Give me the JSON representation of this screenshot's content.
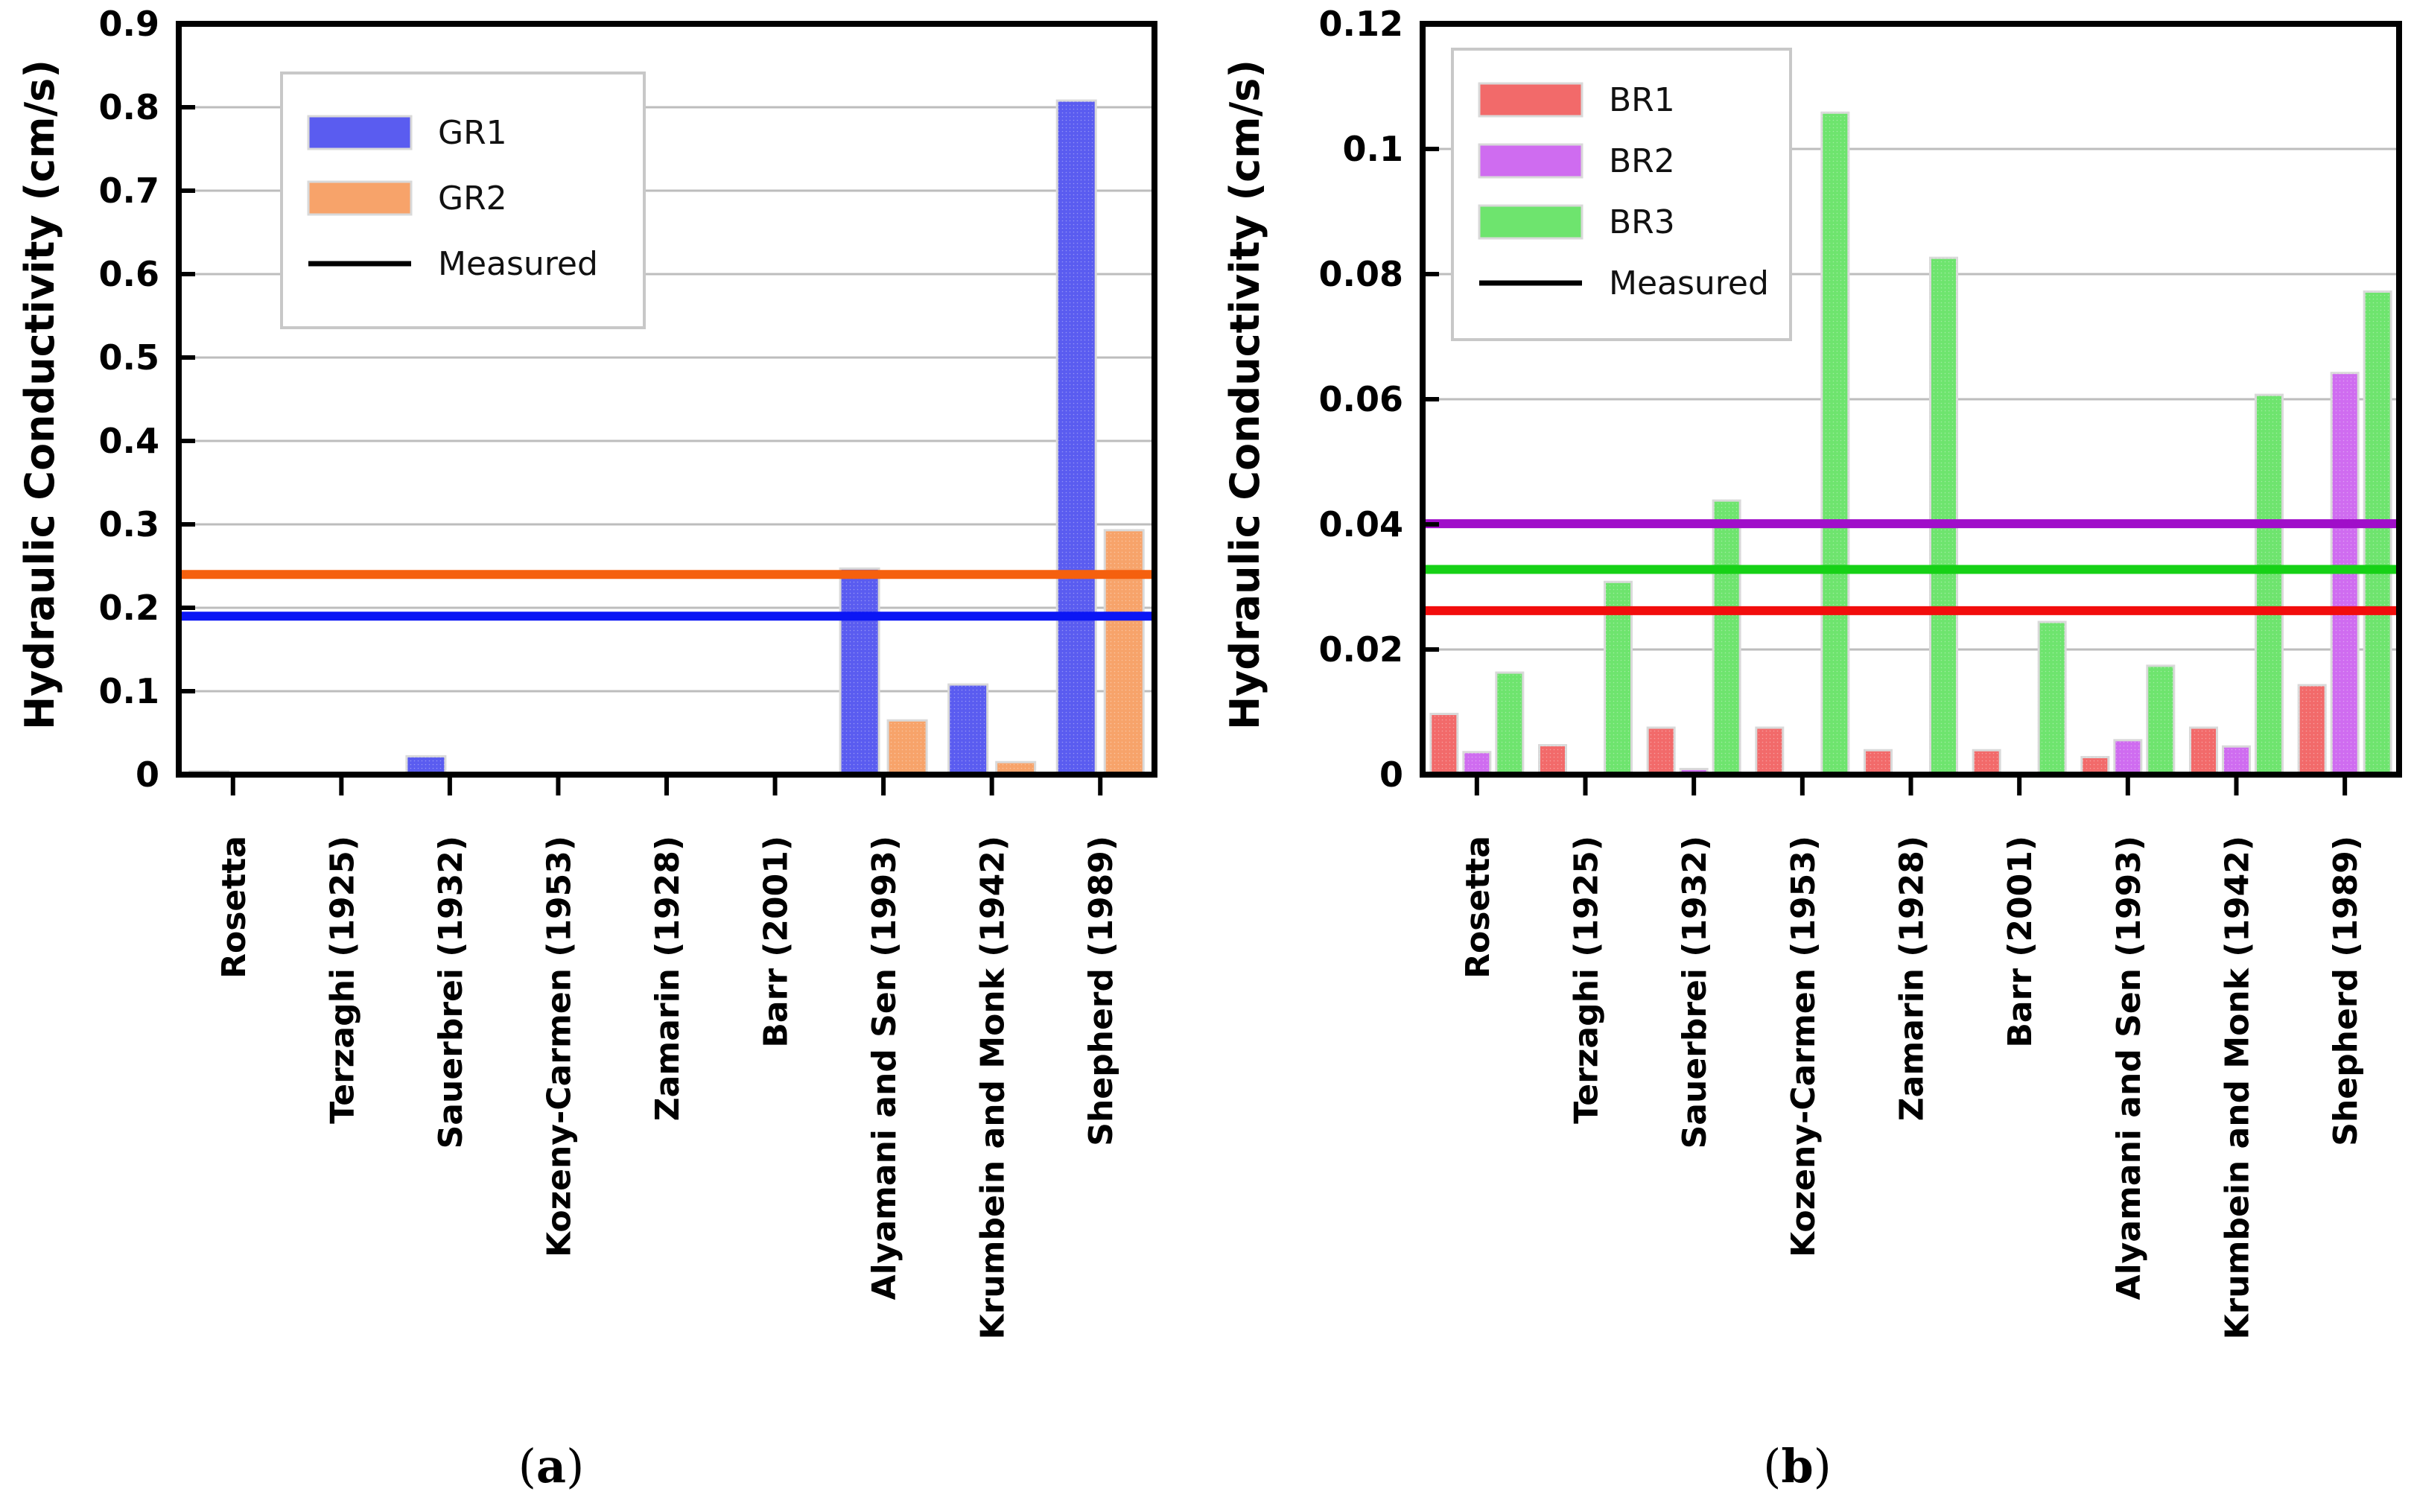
{
  "chart_data": [
    {
      "type": "bar",
      "panel_label": "a",
      "ylabel": "Hydraulic Conductivity (cm/s)",
      "ylim": [
        0,
        0.9
      ],
      "yticks": [
        0,
        0.1,
        0.2,
        0.3,
        0.4,
        0.5,
        0.6,
        0.7,
        0.8,
        0.9
      ],
      "ytick_labels": [
        "0",
        "0.1",
        "0.2",
        "0.3",
        "0.4",
        "0.5",
        "0.6",
        "0.7",
        "0.8",
        "0.9"
      ],
      "grid": true,
      "legend_position": "top-left",
      "categories": [
        "Rosetta",
        "Terzaghi (1925)",
        "Sauerbrei (1932)",
        "Kozeny-Carmen (1953)",
        "Zamarin (1928)",
        "Barr (2001)",
        "Alyamani and Sen (1993)",
        "Krumbein and Monk (1942)",
        "Shepherd (1989)"
      ],
      "series": [
        {
          "name": "GR1",
          "color": "#5a5cf0",
          "values": [
            0.004,
            0.001,
            0.022,
            0.002,
            0.002,
            0.002,
            0.247,
            0.108,
            0.808
          ]
        },
        {
          "name": "GR2",
          "color": "#f7a36a",
          "values": [
            0.001,
            0.002,
            0.002,
            0.001,
            0.001,
            0.002,
            0.065,
            0.015,
            0.293
          ]
        }
      ],
      "measured": [
        {
          "series": "GR1",
          "value": 0.19,
          "color": "#0b16f5"
        },
        {
          "series": "GR2",
          "value": 0.24,
          "color": "#f5600e"
        }
      ],
      "legend_entries": [
        "GR1",
        "GR2",
        "Measured"
      ]
    },
    {
      "type": "bar",
      "panel_label": "b",
      "ylabel": "Hydraulic Conductivity (cm/s)",
      "ylim": [
        0,
        0.12
      ],
      "yticks": [
        0,
        0.02,
        0.04,
        0.06,
        0.08,
        0.1,
        0.12
      ],
      "ytick_labels": [
        "0",
        "0.02",
        "0.04",
        "0.06",
        "0.08",
        "0.1",
        "0.12"
      ],
      "grid": true,
      "legend_position": "top-left",
      "categories": [
        "Rosetta",
        "Terzaghi (1925)",
        "Sauerbrei (1932)",
        "Kozeny-Carmen (1953)",
        "Zamarin (1928)",
        "Barr (2001)",
        "Alyamani and Sen (1993)",
        "Krumbein and Monk (1942)",
        "Shepherd (1989)"
      ],
      "series": [
        {
          "name": "BR1",
          "color": "#f26a6a",
          "values": [
            0.0097,
            0.0047,
            0.0075,
            0.0075,
            0.0039,
            0.0039,
            0.0028,
            0.0075,
            0.0143
          ]
        },
        {
          "name": "BR2",
          "color": "#cf6cf0",
          "values": [
            0.0036,
            0.0001,
            0.0009,
            0.0001,
            0.0002,
            0.0003,
            0.0055,
            0.0045,
            0.0642
          ]
        },
        {
          "name": "BR3",
          "color": "#6ee46e",
          "values": [
            0.0163,
            0.0308,
            0.0438,
            0.1058,
            0.0826,
            0.0244,
            0.0174,
            0.0607,
            0.0772
          ]
        }
      ],
      "measured": [
        {
          "series": "BR1",
          "value": 0.0262,
          "color": "#f20d0d"
        },
        {
          "series": "BR2",
          "value": 0.0401,
          "color": "#a00ec9"
        },
        {
          "series": "BR3",
          "value": 0.0328,
          "color": "#16d116"
        }
      ],
      "legend_entries": [
        "BR1",
        "BR2",
        "BR3",
        "Measured"
      ]
    }
  ],
  "captions": {
    "a": {
      "open": "(",
      "letter": "a",
      "close": ")"
    },
    "b": {
      "open": "(",
      "letter": "b",
      "close": ")"
    }
  }
}
